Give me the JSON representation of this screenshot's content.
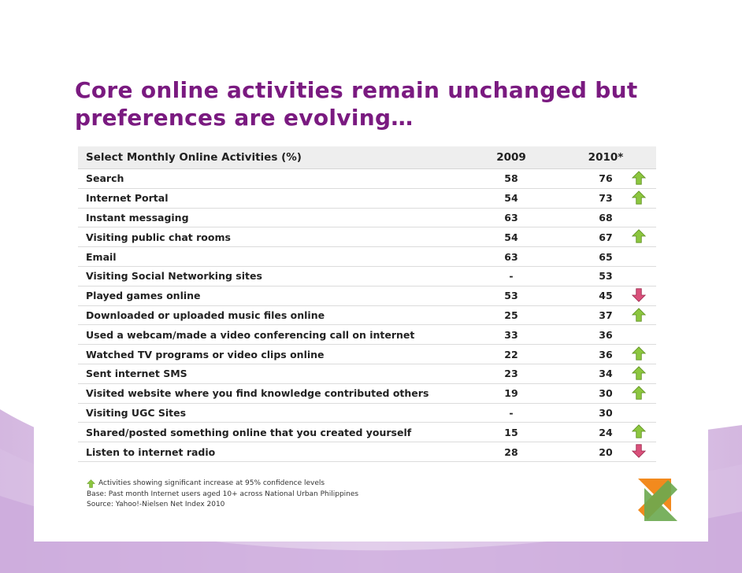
{
  "slide": {
    "title_line1": "Core online activities remain unchanged but",
    "title_line2": "preferences are evolving…"
  },
  "table": {
    "headers": {
      "activity": "Select Monthly Online Activities (%)",
      "y2009": "2009",
      "y2010": "2010*"
    },
    "rows": [
      {
        "activity": "Search",
        "y2009": "58",
        "y2010": "76",
        "trend": "up"
      },
      {
        "activity": "Internet Portal",
        "y2009": "54",
        "y2010": "73",
        "trend": "up"
      },
      {
        "activity": "Instant messaging",
        "y2009": "63",
        "y2010": "68",
        "trend": "none"
      },
      {
        "activity": "Visiting public chat rooms",
        "y2009": "54",
        "y2010": "67",
        "trend": "up"
      },
      {
        "activity": "Email",
        "y2009": "63",
        "y2010": "65",
        "trend": "none"
      },
      {
        "activity": "Visiting Social Networking sites",
        "y2009": "-",
        "y2010": "53",
        "trend": "none"
      },
      {
        "activity": "Played games online",
        "y2009": "53",
        "y2010": "45",
        "trend": "down"
      },
      {
        "activity": "Downloaded or uploaded music files online",
        "y2009": "25",
        "y2010": "37",
        "trend": "up"
      },
      {
        "activity": "Used a webcam/made a video conferencing call on internet",
        "y2009": "33",
        "y2010": "36",
        "trend": "none"
      },
      {
        "activity": "Watched TV programs or video clips online",
        "y2009": "22",
        "y2010": "36",
        "trend": "up"
      },
      {
        "activity": "Sent internet SMS",
        "y2009": "23",
        "y2010": "34",
        "trend": "up"
      },
      {
        "activity": "Visited website where you find knowledge contributed others",
        "y2009": "19",
        "y2010": "30",
        "trend": "up"
      },
      {
        "activity": "Visiting UGC Sites",
        "y2009": "-",
        "y2010": "30",
        "trend": "none"
      },
      {
        "activity": "Shared/posted something online that you created yourself",
        "y2009": "15",
        "y2010": "24",
        "trend": "up"
      },
      {
        "activity": "Listen to internet radio",
        "y2009": "28",
        "y2010": "20",
        "trend": "down"
      }
    ]
  },
  "footer": {
    "legend": "Activities showing significant increase at 95% confidence levels",
    "base": "Base: Past month Internet users aged 10+ across National Urban Philippines",
    "source": "Source: Yahoo!-Nielsen Net Index 2010"
  },
  "colors": {
    "title": "#7a1a80",
    "arrow_up": "#8cc63f",
    "arrow_down": "#d9507a",
    "decor_purple": "#c9a6d6"
  },
  "icons": {
    "up": "arrow-up-icon",
    "down": "arrow-down-icon",
    "logo": "brand-arrows-logo-icon"
  }
}
